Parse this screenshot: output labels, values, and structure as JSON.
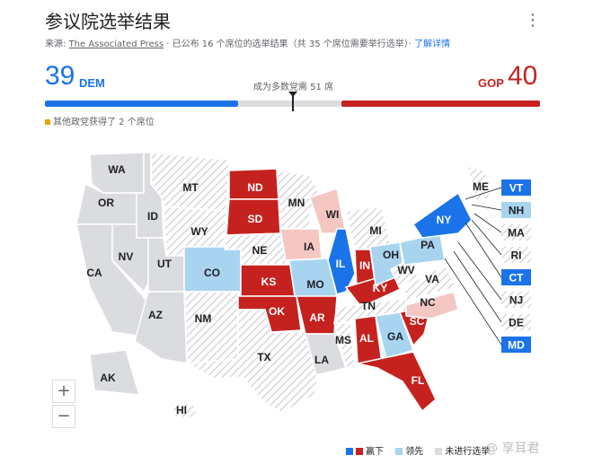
{
  "header": {
    "title": "参议院选举结果",
    "menu_icon": "⋮",
    "source_prefix": "来源:",
    "source_name": "The Associated Press",
    "source_suffix": "· 已公布 16 个席位的选举结果（共 35 个席位需要举行选举）·",
    "more_link": "了解详情"
  },
  "tally": {
    "dem_count": "39",
    "dem_label": "DEM",
    "gop_label": "GOP",
    "gop_count": "40",
    "majority_text": "成为多数党需 51 席",
    "other_text": "其他政党获得了 2 个席位"
  },
  "colors": {
    "dem_win": "#1a73e8",
    "dem_lead": "#a8d4f0",
    "gop_win": "#c5221f",
    "gop_lead": "#f4c7c3",
    "no_election": "#dadce0"
  },
  "map": {
    "states": [
      {
        "abbr": "WA",
        "status": "none"
      },
      {
        "abbr": "OR",
        "status": "none"
      },
      {
        "abbr": "CA",
        "status": "none"
      },
      {
        "abbr": "ID",
        "status": "none"
      },
      {
        "abbr": "NV",
        "status": "none"
      },
      {
        "abbr": "MT",
        "status": "hatch"
      },
      {
        "abbr": "WY",
        "status": "hatch"
      },
      {
        "abbr": "UT",
        "status": "none"
      },
      {
        "abbr": "AZ",
        "status": "none"
      },
      {
        "abbr": "CO",
        "status": "dem_lead"
      },
      {
        "abbr": "NM",
        "status": "hatch"
      },
      {
        "abbr": "ND",
        "status": "gop_win"
      },
      {
        "abbr": "SD",
        "status": "gop_win"
      },
      {
        "abbr": "NE",
        "status": "hatch"
      },
      {
        "abbr": "KS",
        "status": "gop_win"
      },
      {
        "abbr": "OK",
        "status": "gop_win"
      },
      {
        "abbr": "TX",
        "status": "hatch"
      },
      {
        "abbr": "MN",
        "status": "hatch"
      },
      {
        "abbr": "IA",
        "status": "gop_lead"
      },
      {
        "abbr": "MO",
        "status": "dem_lead"
      },
      {
        "abbr": "AR",
        "status": "gop_win"
      },
      {
        "abbr": "LA",
        "status": "none"
      },
      {
        "abbr": "WI",
        "status": "gop_lead"
      },
      {
        "abbr": "IL",
        "status": "dem_win"
      },
      {
        "abbr": "MS",
        "status": "hatch"
      },
      {
        "abbr": "MI",
        "status": "hatch"
      },
      {
        "abbr": "IN",
        "status": "gop_win"
      },
      {
        "abbr": "KY",
        "status": "gop_win"
      },
      {
        "abbr": "TN",
        "status": "hatch"
      },
      {
        "abbr": "AL",
        "status": "gop_win"
      },
      {
        "abbr": "OH",
        "status": "dem_lead"
      },
      {
        "abbr": "GA",
        "status": "dem_lead"
      },
      {
        "abbr": "FL",
        "status": "gop_win"
      },
      {
        "abbr": "SC",
        "status": "gop_win"
      },
      {
        "abbr": "NC",
        "status": "gop_lead"
      },
      {
        "abbr": "VA",
        "status": "hatch"
      },
      {
        "abbr": "WV",
        "status": "hatch"
      },
      {
        "abbr": "PA",
        "status": "dem_lead"
      },
      {
        "abbr": "NY",
        "status": "dem_win"
      },
      {
        "abbr": "ME",
        "status": "hatch"
      },
      {
        "abbr": "AK",
        "status": "none"
      },
      {
        "abbr": "HI",
        "status": "hatch"
      }
    ],
    "callouts": [
      {
        "abbr": "VT",
        "status": "dem_win"
      },
      {
        "abbr": "NH",
        "status": "dem_lead"
      },
      {
        "abbr": "MA",
        "status": "hatch"
      },
      {
        "abbr": "RI",
        "status": "hatch"
      },
      {
        "abbr": "CT",
        "status": "dem_win"
      },
      {
        "abbr": "NJ",
        "status": "hatch"
      },
      {
        "abbr": "DE",
        "status": "hatch"
      },
      {
        "abbr": "MD",
        "status": "dem_win"
      }
    ]
  },
  "zoom": {
    "in": "+",
    "out": "−"
  },
  "legend": {
    "won": "赢下",
    "leading": "领先",
    "no_election": "未进行选举"
  },
  "watermark": "@ 享耳君"
}
